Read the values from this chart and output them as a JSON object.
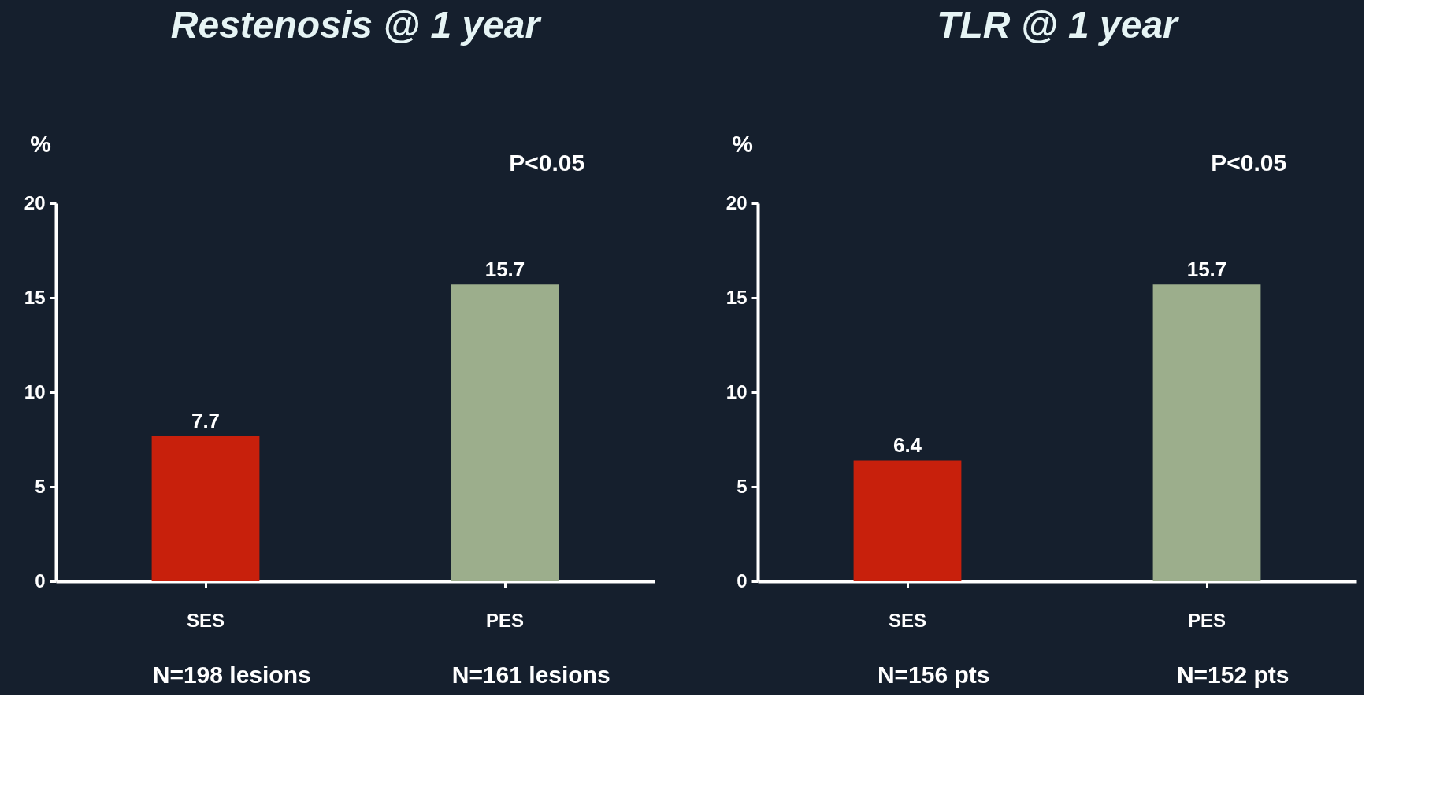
{
  "chart_data": [
    {
      "type": "bar",
      "title": "Restenosis @ 1 year",
      "ylabel": "%",
      "categories": [
        "SES",
        "PES"
      ],
      "values": [
        7.7,
        15.7
      ],
      "colors": [
        "#c8200c",
        "#9cae8c"
      ],
      "ylim": [
        0,
        20
      ],
      "yticks": [
        0,
        5,
        10,
        15,
        20
      ],
      "data_labels": true,
      "grid": false,
      "annotations": [
        "P<0.05",
        "N=198 lesions",
        "N=161 lesions"
      ]
    },
    {
      "type": "bar",
      "title": "TLR @ 1 year",
      "ylabel": "%",
      "categories": [
        "SES",
        "PES"
      ],
      "values": [
        6.4,
        15.7
      ],
      "colors": [
        "#c8200c",
        "#9cae8c"
      ],
      "ylim": [
        0,
        20
      ],
      "yticks": [
        0,
        5,
        10,
        15,
        20
      ],
      "data_labels": true,
      "grid": false,
      "annotations": [
        "P<0.05",
        "N=156 pts",
        "N=152 pts"
      ]
    }
  ]
}
